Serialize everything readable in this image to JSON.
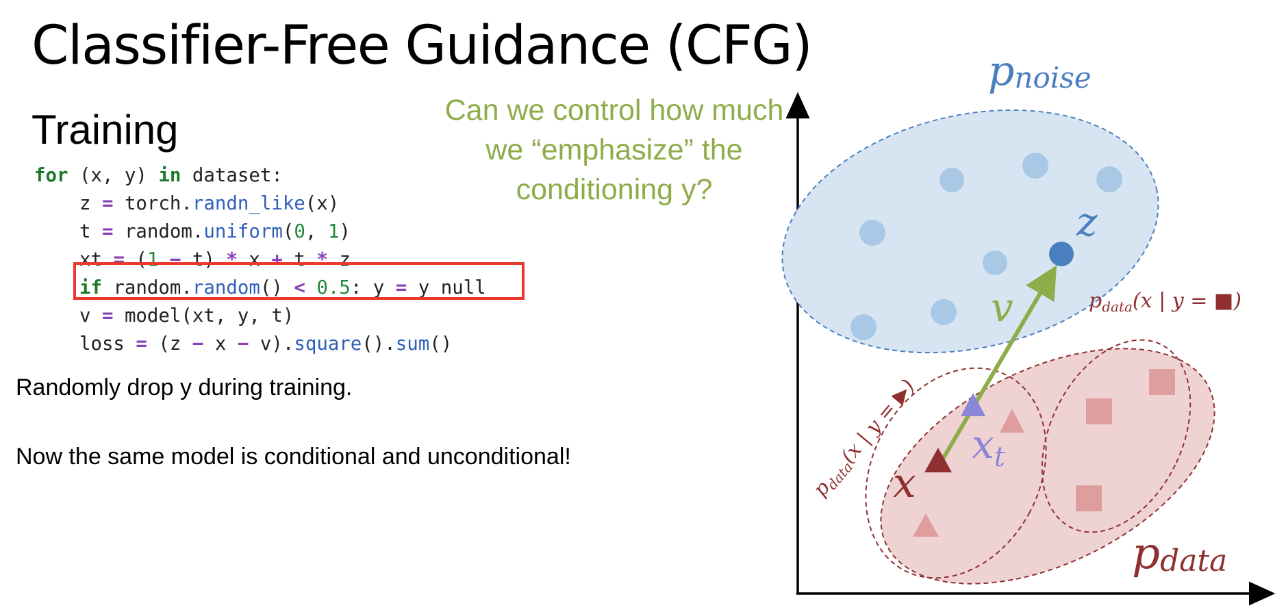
{
  "slide": {
    "title": "Classifier-Free Guidance (CFG)",
    "section": "Training",
    "callout": "Can we control how much we “emphasize” the conditioning y?",
    "notes": [
      "Randomly drop y during training.",
      "Now the same model is conditional and unconditional!"
    ]
  },
  "code": {
    "highlight_color": "#e8392c",
    "lines": [
      [
        {
          "t": "for",
          "c": "kw"
        },
        {
          "t": " (x, y) "
        },
        {
          "t": "in",
          "c": "kw"
        },
        {
          "t": " dataset:"
        }
      ],
      [
        {
          "t": "    z "
        },
        {
          "t": "=",
          "c": "op"
        },
        {
          "t": " torch."
        },
        {
          "t": "randn_like",
          "c": "fn"
        },
        {
          "t": "(x)"
        }
      ],
      [
        {
          "t": "    t "
        },
        {
          "t": "=",
          "c": "op"
        },
        {
          "t": " random."
        },
        {
          "t": "uniform",
          "c": "fn"
        },
        {
          "t": "("
        },
        {
          "t": "0",
          "c": "num"
        },
        {
          "t": ", "
        },
        {
          "t": "1",
          "c": "num"
        },
        {
          "t": ")"
        }
      ],
      [
        {
          "t": "    xt "
        },
        {
          "t": "=",
          "c": "op"
        },
        {
          "t": " ("
        },
        {
          "t": "1",
          "c": "num"
        },
        {
          "t": " "
        },
        {
          "t": "−",
          "c": "op"
        },
        {
          "t": " t) "
        },
        {
          "t": "*",
          "c": "op"
        },
        {
          "t": " x "
        },
        {
          "t": "+",
          "c": "op"
        },
        {
          "t": " t "
        },
        {
          "t": "*",
          "c": "op"
        },
        {
          "t": " z"
        }
      ],
      [
        {
          "t": "    "
        },
        {
          "t": "if",
          "c": "kw"
        },
        {
          "t": " random."
        },
        {
          "t": "random",
          "c": "fn"
        },
        {
          "t": "() "
        },
        {
          "t": "<",
          "c": "op"
        },
        {
          "t": " "
        },
        {
          "t": "0.5",
          "c": "num"
        },
        {
          "t": ": y "
        },
        {
          "t": "=",
          "c": "op"
        },
        {
          "t": " y_null"
        }
      ],
      [
        {
          "t": "    v "
        },
        {
          "t": "=",
          "c": "op"
        },
        {
          "t": " model(xt, y, t)"
        }
      ],
      [
        {
          "t": "    loss "
        },
        {
          "t": "=",
          "c": "op"
        },
        {
          "t": " (z "
        },
        {
          "t": "−",
          "c": "op"
        },
        {
          "t": " x "
        },
        {
          "t": "−",
          "c": "op"
        },
        {
          "t": " v)."
        },
        {
          "t": "square",
          "c": "fn"
        },
        {
          "t": "()."
        },
        {
          "t": "sum",
          "c": "fn"
        },
        {
          "t": "()"
        }
      ]
    ]
  },
  "diagram": {
    "labels": {
      "p": "p",
      "noise_sub": "noise",
      "data_sub": "data",
      "z": "z",
      "v": "v",
      "x": "x",
      "xt_base": "x",
      "xt_sub": "t",
      "cond_square_rest": "(x | y = ■)",
      "cond_triangle_rest": "(x | y = ▶)"
    },
    "colors": {
      "noise": "#4a7fbf",
      "noise_fill": "#d7e5f3",
      "noise_dot": "#a9c8e6",
      "data": "#8f2f2f",
      "data_fill": "#efd3d3",
      "data_marker": "#df9e9e",
      "xt_marker": "#8b86d6",
      "arrow": "#8fac4a"
    }
  }
}
